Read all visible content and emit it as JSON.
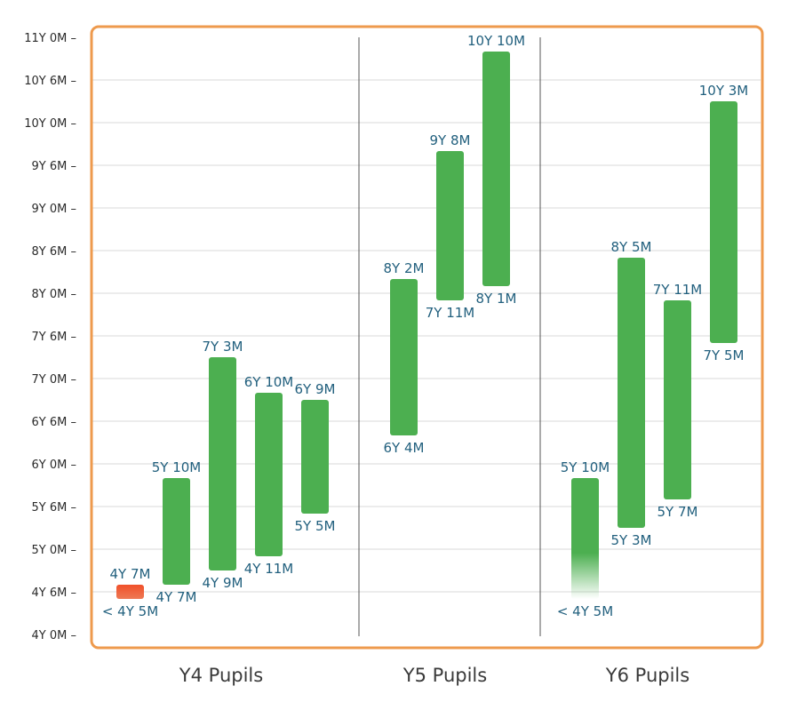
{
  "chart_data": {
    "type": "bar",
    "subtype": "floating-range",
    "y_unit": "months",
    "ylim": [
      48,
      132
    ],
    "y_ticks": [
      {
        "value": 48,
        "label": "4Y 0M –"
      },
      {
        "value": 54,
        "label": "4Y 6M –"
      },
      {
        "value": 60,
        "label": "5Y 0M –"
      },
      {
        "value": 66,
        "label": "5Y 6M –"
      },
      {
        "value": 72,
        "label": "6Y 0M –"
      },
      {
        "value": 78,
        "label": "6Y 6M –"
      },
      {
        "value": 84,
        "label": "7Y 0M –"
      },
      {
        "value": 90,
        "label": "7Y 6M –"
      },
      {
        "value": 96,
        "label": "8Y 0M –"
      },
      {
        "value": 102,
        "label": "8Y 6M –"
      },
      {
        "value": 108,
        "label": "9Y 0M –"
      },
      {
        "value": 114,
        "label": "9Y 6M –"
      },
      {
        "value": 120,
        "label": "10Y 0M –"
      },
      {
        "value": 126,
        "label": "10Y 6M –"
      },
      {
        "value": 132,
        "label": "11Y 0M –"
      }
    ],
    "grid": true,
    "groups": [
      {
        "label": "Y4 Pupils",
        "bars": [
          {
            "low": 53,
            "high": 55,
            "low_label": "< 4Y 5M",
            "high_label": "4Y 7M",
            "color": "#e8542a",
            "style": "below-range"
          },
          {
            "low": 55,
            "high": 70,
            "low_label": "4Y 7M",
            "high_label": "5Y 10M",
            "color": "#4caf50",
            "style": "solid"
          },
          {
            "low": 57,
            "high": 87,
            "low_label": "4Y 9M",
            "high_label": "7Y 3M",
            "color": "#4caf50",
            "style": "solid"
          },
          {
            "low": 59,
            "high": 82,
            "low_label": "4Y 11M",
            "high_label": "6Y 10M",
            "color": "#4caf50",
            "style": "solid"
          },
          {
            "low": 65,
            "high": 81,
            "low_label": "5Y 5M",
            "high_label": "6Y 9M",
            "color": "#4caf50",
            "style": "solid"
          }
        ]
      },
      {
        "label": "Y5 Pupils",
        "bars": [
          {
            "low": 76,
            "high": 98,
            "low_label": "6Y 4M",
            "high_label": "8Y 2M",
            "color": "#4caf50",
            "style": "solid"
          },
          {
            "low": 95,
            "high": 116,
            "low_label": "7Y 11M",
            "high_label": "9Y 8M",
            "color": "#4caf50",
            "style": "solid"
          },
          {
            "low": 97,
            "high": 130,
            "low_label": "8Y 1M",
            "high_label": "10Y 10M",
            "color": "#4caf50",
            "style": "solid"
          }
        ]
      },
      {
        "label": "Y6 Pupils",
        "bars": [
          {
            "low": 53,
            "high": 70,
            "low_label": "< 4Y 5M",
            "high_label": "5Y 10M",
            "color": "#4caf50",
            "style": "fade-bottom"
          },
          {
            "low": 63,
            "high": 101,
            "low_label": "5Y 3M",
            "high_label": "8Y 5M",
            "color": "#4caf50",
            "style": "solid"
          },
          {
            "low": 67,
            "high": 95,
            "low_label": "5Y 7M",
            "high_label": "7Y 11M",
            "color": "#4caf50",
            "style": "solid"
          },
          {
            "low": 89,
            "high": 123,
            "low_label": "7Y 5M",
            "high_label": "10Y 3M",
            "color": "#4caf50",
            "style": "solid"
          }
        ]
      }
    ],
    "colors": {
      "frame": "#ee9a4d",
      "grid": "#d9d9d9",
      "divider": "#555555",
      "value_label": "#22607e"
    }
  }
}
